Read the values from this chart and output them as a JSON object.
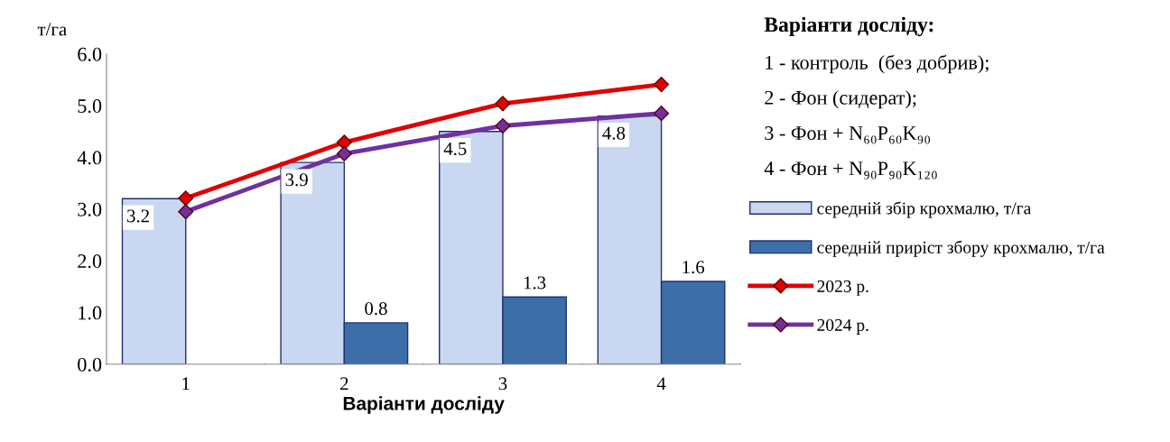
{
  "chart_data": {
    "type": "bar",
    "ylabel": "т/га",
    "xlabel": "Варіанти досліду",
    "categories": [
      "1",
      "2",
      "3",
      "4"
    ],
    "series": [
      {
        "name": "середній збір крохмалю, т/га",
        "color": "#c9d8f0",
        "values": [
          3.2,
          3.9,
          4.5,
          4.8
        ],
        "value_labels": [
          "3.2",
          "3.9",
          "4.5",
          "4.8"
        ]
      },
      {
        "name": "середній приріст збору крохмалю, т/га",
        "color": "#3c6fa8",
        "values": [
          null,
          0.8,
          1.3,
          1.6
        ],
        "value_labels": [
          null,
          "0.8",
          "1.3",
          "1.6"
        ]
      },
      {
        "name": "2023 р.",
        "type": "line",
        "color": "#e00000",
        "marker": "diamond",
        "values": [
          3.21,
          4.29,
          5.04,
          5.41
        ]
      },
      {
        "name": "2024 р.",
        "type": "line",
        "color": "#7030a0",
        "marker": "diamond",
        "values": [
          2.95,
          4.07,
          4.61,
          4.85
        ]
      }
    ],
    "ylim": [
      0,
      6
    ],
    "yticks": [
      {
        "value": 0,
        "label": "0.0"
      },
      {
        "value": 1,
        "label": "1.0"
      },
      {
        "value": 2,
        "label": "2.0"
      },
      {
        "value": 3,
        "label": "3.0"
      },
      {
        "value": 4,
        "label": "4.0"
      },
      {
        "value": 5,
        "label": "5.0"
      },
      {
        "value": 6,
        "label": "6.0"
      }
    ],
    "grid": false,
    "legend": "right",
    "annotations": [
      "Варіанти досліду:",
      "1 - контроль  (без добрив);",
      "2 - Фон (сидерат);",
      "3 - Фон + N₆₀P₆₀K₉₀",
      "4 - Фон + N₉₀P₉₀K₁₂₀"
    ]
  }
}
